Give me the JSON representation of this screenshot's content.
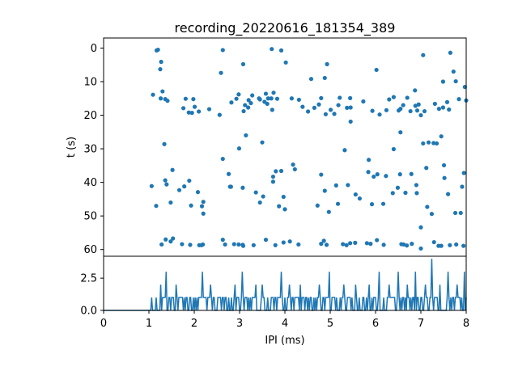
{
  "chart_data": {
    "title": "recording_20220616_181354_389",
    "color": "#1f77b4",
    "top": {
      "type": "scatter",
      "ylabel": "t (s)",
      "ylim": [
        62,
        -3
      ],
      "yticks": [
        0,
        10,
        20,
        30,
        40,
        50,
        60
      ],
      "xlim": [
        0,
        8
      ],
      "points": [
        [
          1.17,
          0.7
        ],
        [
          1.2,
          0.5
        ],
        [
          1.27,
          4.1
        ],
        [
          1.25,
          6.3
        ],
        [
          2.63,
          0.6
        ],
        [
          3.08,
          4.8
        ],
        [
          3.71,
          0.3
        ],
        [
          3.92,
          0.7
        ],
        [
          4.02,
          4.3
        ],
        [
          4.93,
          4.8
        ],
        [
          6.02,
          6.5
        ],
        [
          7.05,
          2.1
        ],
        [
          7.65,
          1.4
        ],
        [
          7.72,
          7.0
        ],
        [
          7.97,
          11.6
        ],
        [
          7.77,
          9.9
        ],
        [
          2.59,
          7.4
        ],
        [
          4.58,
          9.2
        ],
        [
          4.88,
          8.9
        ],
        [
          7.49,
          10.0
        ],
        [
          1.09,
          13.9
        ],
        [
          1.26,
          15.0
        ],
        [
          1.3,
          12.9
        ],
        [
          1.36,
          15.2
        ],
        [
          1.41,
          15.7
        ],
        [
          1.76,
          17.9
        ],
        [
          1.81,
          15.1
        ],
        [
          1.88,
          19.2
        ],
        [
          1.95,
          19.3
        ],
        [
          1.98,
          15.2
        ],
        [
          2.01,
          17.5
        ],
        [
          2.1,
          18.9
        ],
        [
          2.33,
          18.2
        ],
        [
          2.56,
          19.9
        ],
        [
          2.82,
          16.2
        ],
        [
          2.93,
          15.1
        ],
        [
          2.98,
          13.8
        ],
        [
          3.09,
          18.8
        ],
        [
          3.12,
          17.0
        ],
        [
          3.19,
          17.7
        ],
        [
          3.2,
          15.5
        ],
        [
          3.25,
          16.4
        ],
        [
          3.28,
          14.1
        ],
        [
          3.43,
          15.0
        ],
        [
          3.45,
          15.3
        ],
        [
          3.55,
          16.0
        ],
        [
          3.58,
          13.6
        ],
        [
          3.61,
          16.6
        ],
        [
          3.63,
          15.0
        ],
        [
          3.7,
          15.0
        ],
        [
          3.72,
          18.4
        ],
        [
          3.75,
          13.3
        ],
        [
          3.83,
          15.1
        ],
        [
          4.15,
          15.0
        ],
        [
          4.31,
          15.4
        ],
        [
          4.39,
          17.5
        ],
        [
          4.51,
          18.9
        ],
        [
          4.65,
          17.8
        ],
        [
          4.75,
          16.8
        ],
        [
          4.8,
          14.9
        ],
        [
          4.9,
          19.7
        ],
        [
          5.01,
          18.4
        ],
        [
          5.09,
          19.6
        ],
        [
          5.18,
          17.0
        ],
        [
          5.21,
          14.8
        ],
        [
          5.37,
          17.8
        ],
        [
          5.44,
          14.9
        ],
        [
          5.45,
          17.7
        ],
        [
          5.45,
          21.9
        ],
        [
          5.73,
          15.9
        ],
        [
          5.93,
          18.7
        ],
        [
          6.09,
          19.8
        ],
        [
          6.24,
          18.5
        ],
        [
          6.3,
          15.3
        ],
        [
          6.51,
          18.6
        ],
        [
          6.55,
          18.1
        ],
        [
          6.61,
          17.0
        ],
        [
          6.7,
          14.8
        ],
        [
          6.77,
          18.8
        ],
        [
          6.88,
          17.2
        ],
        [
          6.92,
          18.6
        ],
        [
          6.95,
          16.8
        ],
        [
          7.0,
          20.0
        ],
        [
          7.08,
          18.8
        ],
        [
          7.31,
          16.6
        ],
        [
          7.4,
          18.1
        ],
        [
          7.49,
          17.7
        ],
        [
          7.58,
          16.1
        ],
        [
          7.62,
          18.3
        ],
        [
          7.84,
          15.2
        ],
        [
          8.0,
          15.6
        ],
        [
          6.4,
          14.6
        ],
        [
          6.87,
          12.6
        ],
        [
          1.34,
          28.6
        ],
        [
          2.63,
          33.0
        ],
        [
          2.99,
          29.9
        ],
        [
          3.14,
          26.0
        ],
        [
          3.5,
          28.1
        ],
        [
          5.32,
          30.4
        ],
        [
          6.4,
          30.1
        ],
        [
          6.55,
          25.1
        ],
        [
          7.05,
          28.4
        ],
        [
          7.17,
          28.1
        ],
        [
          7.28,
          28.3
        ],
        [
          7.35,
          28.4
        ],
        [
          7.45,
          26.3
        ],
        [
          7.12,
          35.7
        ],
        [
          7.51,
          34.9
        ],
        [
          1.06,
          41.1
        ],
        [
          1.16,
          47.0
        ],
        [
          1.36,
          39.4
        ],
        [
          1.39,
          40.6
        ],
        [
          1.48,
          46.0
        ],
        [
          1.52,
          36.3
        ],
        [
          1.67,
          42.3
        ],
        [
          1.78,
          41.2
        ],
        [
          1.89,
          39.5
        ],
        [
          1.93,
          46.9
        ],
        [
          2.08,
          42.9
        ],
        [
          2.17,
          47.1
        ],
        [
          2.2,
          49.3
        ],
        [
          2.2,
          45.8
        ],
        [
          2.76,
          37.5
        ],
        [
          2.79,
          41.3
        ],
        [
          2.81,
          41.3
        ],
        [
          3.07,
          41.6
        ],
        [
          3.36,
          43.0
        ],
        [
          3.45,
          46.0
        ],
        [
          3.52,
          44.2
        ],
        [
          3.74,
          38.3
        ],
        [
          3.74,
          39.8
        ],
        [
          3.8,
          36.7
        ],
        [
          3.87,
          47.1
        ],
        [
          3.92,
          36.6
        ],
        [
          3.97,
          44.3
        ],
        [
          4.18,
          34.7
        ],
        [
          4.22,
          36.1
        ],
        [
          4.0,
          48.0
        ],
        [
          4.72,
          46.9
        ],
        [
          4.8,
          37.7
        ],
        [
          4.88,
          42.5
        ],
        [
          4.97,
          48.8
        ],
        [
          5.13,
          40.9
        ],
        [
          5.17,
          46.4
        ],
        [
          5.39,
          40.8
        ],
        [
          5.56,
          43.6
        ],
        [
          5.65,
          44.8
        ],
        [
          5.84,
          36.9
        ],
        [
          5.85,
          33.3
        ],
        [
          5.92,
          46.5
        ],
        [
          5.96,
          38.3
        ],
        [
          6.04,
          37.6
        ],
        [
          6.17,
          46.4
        ],
        [
          6.23,
          38.1
        ],
        [
          6.38,
          43.2
        ],
        [
          6.49,
          41.6
        ],
        [
          6.54,
          37.6
        ],
        [
          6.66,
          43.1
        ],
        [
          6.79,
          37.5
        ],
        [
          6.91,
          43.2
        ],
        [
          6.9,
          40.8
        ],
        [
          7.14,
          47.3
        ],
        [
          7.24,
          49.4
        ],
        [
          7.52,
          38.7
        ],
        [
          7.6,
          43.5
        ],
        [
          7.76,
          49.1
        ],
        [
          7.88,
          49.1
        ],
        [
          7.91,
          41.3
        ],
        [
          7.95,
          37.2
        ],
        [
          7.0,
          53.4
        ],
        [
          1.28,
          58.5
        ],
        [
          1.37,
          57.0
        ],
        [
          1.48,
          57.6
        ],
        [
          1.53,
          56.7
        ],
        [
          1.73,
          58.4
        ],
        [
          1.91,
          58.6
        ],
        [
          2.11,
          58.7
        ],
        [
          2.16,
          58.7
        ],
        [
          2.19,
          58.5
        ],
        [
          2.63,
          57.1
        ],
        [
          2.68,
          58.5
        ],
        [
          2.88,
          58.4
        ],
        [
          2.98,
          58.5
        ],
        [
          3.07,
          58.6
        ],
        [
          3.08,
          58.9
        ],
        [
          3.31,
          58.7
        ],
        [
          3.58,
          57.1
        ],
        [
          3.79,
          58.7
        ],
        [
          3.97,
          57.9
        ],
        [
          4.11,
          57.6
        ],
        [
          4.3,
          58.5
        ],
        [
          4.8,
          58.3
        ],
        [
          4.86,
          57.4
        ],
        [
          4.92,
          58.6
        ],
        [
          5.28,
          58.4
        ],
        [
          5.36,
          58.7
        ],
        [
          5.44,
          58.1
        ],
        [
          5.55,
          58.0
        ],
        [
          5.81,
          58.1
        ],
        [
          5.89,
          58.3
        ],
        [
          6.03,
          57.2
        ],
        [
          6.18,
          58.6
        ],
        [
          6.57,
          58.4
        ],
        [
          6.62,
          58.5
        ],
        [
          6.69,
          58.8
        ],
        [
          6.8,
          58.3
        ],
        [
          7.0,
          59.7
        ],
        [
          7.29,
          57.8
        ],
        [
          7.39,
          58.9
        ],
        [
          7.45,
          58.9
        ],
        [
          7.64,
          58.7
        ],
        [
          7.78,
          58.5
        ],
        [
          7.94,
          58.9
        ]
      ]
    },
    "bottom": {
      "type": "line",
      "xlabel": "IPI (ms)",
      "xlim": [
        0,
        8
      ],
      "ylim": [
        0,
        4.2
      ],
      "xticks": [
        0,
        1,
        2,
        3,
        4,
        5,
        6,
        7,
        8
      ],
      "yticks": [
        0.0,
        2.5
      ],
      "ytick_labels": [
        "0.0",
        "2.5"
      ],
      "bin_width": 0.02,
      "first_nonzero_x": 1.04,
      "peaks": [
        [
          1.37,
          3
        ],
        [
          2.18,
          3
        ],
        [
          3.05,
          3
        ],
        [
          3.91,
          3
        ],
        [
          4.98,
          3
        ],
        [
          6.08,
          3
        ],
        [
          6.5,
          3
        ],
        [
          6.88,
          3
        ],
        [
          7.24,
          4
        ],
        [
          7.59,
          3
        ],
        [
          7.96,
          3
        ],
        [
          1.25,
          2
        ],
        [
          1.6,
          2
        ],
        [
          2.35,
          2
        ],
        [
          2.9,
          2
        ],
        [
          3.35,
          2
        ],
        [
          3.5,
          2
        ],
        [
          4.1,
          2
        ],
        [
          4.35,
          2
        ],
        [
          4.75,
          2
        ],
        [
          5.3,
          2
        ],
        [
          5.55,
          2
        ],
        [
          5.85,
          2
        ],
        [
          6.3,
          2
        ],
        [
          6.7,
          2
        ],
        [
          7.1,
          2
        ],
        [
          7.42,
          2
        ],
        [
          7.8,
          2
        ]
      ]
    }
  }
}
